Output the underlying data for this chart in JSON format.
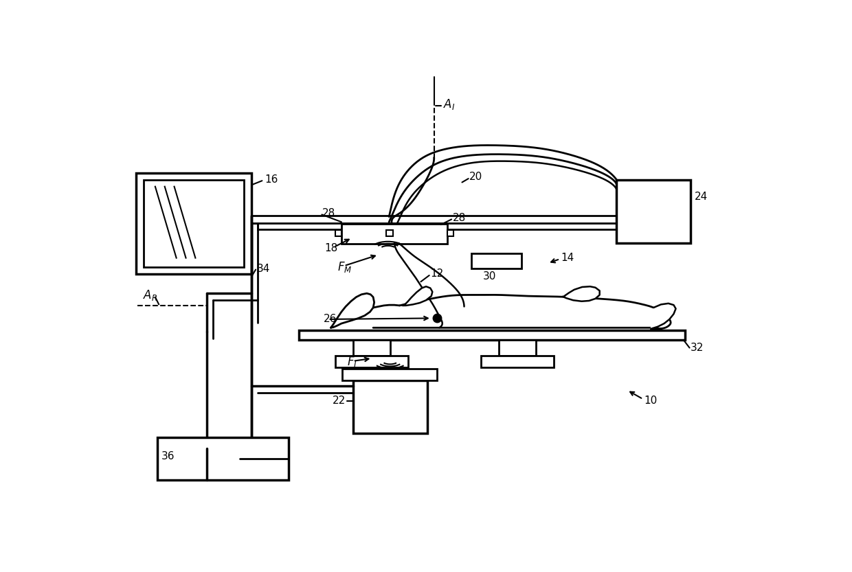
{
  "bg_color": "#ffffff",
  "line_color": "#000000",
  "lw_main": 2.0,
  "lw_thick": 2.5,
  "lw_thin": 1.5
}
